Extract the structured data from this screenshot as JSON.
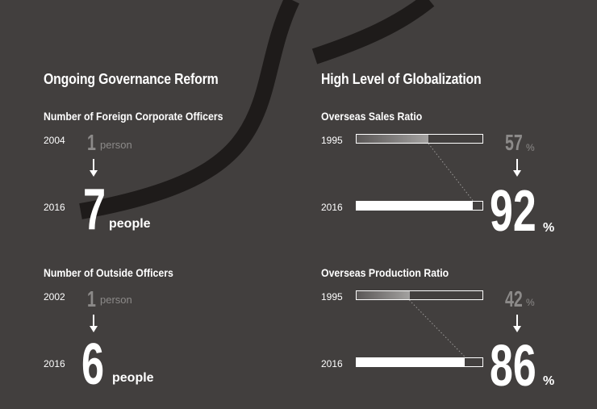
{
  "left": {
    "title": "Ongoing Governance Reform",
    "foreign_officers": {
      "subtitle": "Number of Foreign Corporate Officers",
      "before": {
        "year": "2004",
        "value": "1",
        "unit": "person"
      },
      "after": {
        "year": "2016",
        "value": "7",
        "unit": "people"
      }
    },
    "outside_officers": {
      "subtitle": "Number of Outside Officers",
      "before": {
        "year": "2002",
        "value": "1",
        "unit": "person"
      },
      "after": {
        "year": "2016",
        "value": "6",
        "unit": "people"
      }
    }
  },
  "right": {
    "title": "High Level of Globalization",
    "sales_ratio": {
      "subtitle": "Overseas Sales Ratio",
      "before": {
        "year": "1995",
        "value": "57",
        "unit": "%",
        "fraction": 0.57
      },
      "after": {
        "year": "2016",
        "value": "92",
        "unit": "%",
        "fraction": 0.92
      }
    },
    "production_ratio": {
      "subtitle": "Overseas Production Ratio",
      "before": {
        "year": "1995",
        "value": "42",
        "unit": "%",
        "fraction": 0.42
      },
      "after": {
        "year": "2016",
        "value": "86",
        "unit": "%",
        "fraction": 0.86
      }
    }
  },
  "colors": {
    "background": "#423f3e",
    "swoosh": "#1e1b1a",
    "muted_text": "#8c8a89",
    "text": "#ffffff"
  }
}
